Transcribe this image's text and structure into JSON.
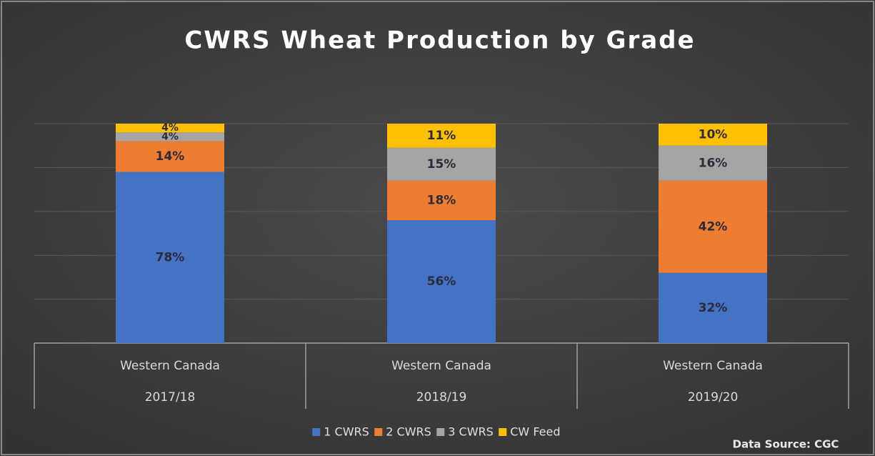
{
  "chart_data": {
    "type": "stacked_bar",
    "title": "CWRS Wheat Production by Grade",
    "categories": [
      [
        "Western Canada",
        "2017/18"
      ],
      [
        "Western Canada",
        "2018/19"
      ],
      [
        "Western Canada",
        "2019/20"
      ]
    ],
    "series": [
      {
        "name": "1 CWRS",
        "color": "#4472c4",
        "values": [
          78,
          56,
          32
        ],
        "value_labels": [
          "78%",
          "56%",
          "32%"
        ]
      },
      {
        "name": "2 CWRS",
        "color": "#ed7d31",
        "values": [
          14,
          18,
          42
        ],
        "value_labels": [
          "14%",
          "18%",
          "42%"
        ]
      },
      {
        "name": "3 CWRS",
        "color": "#a5a5a5",
        "values": [
          4,
          15,
          16
        ],
        "value_labels": [
          "4%",
          "15%",
          "16%"
        ]
      },
      {
        "name": "CW Feed",
        "color": "#ffc000",
        "values": [
          4,
          11,
          10
        ],
        "value_labels": [
          "4%",
          "11%",
          "10%"
        ]
      }
    ],
    "ylim": [
      0,
      100
    ],
    "yticks": [
      0,
      20,
      40,
      60,
      80,
      100
    ],
    "grid": true,
    "legend": "bottom",
    "annotation": "Data Source: CGC"
  }
}
